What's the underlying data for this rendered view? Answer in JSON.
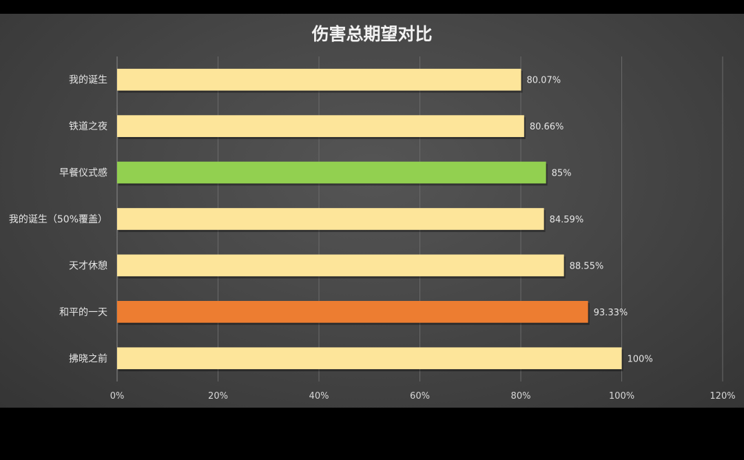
{
  "chart_data": {
    "type": "bar",
    "orientation": "horizontal",
    "title": "伤害总期望对比",
    "xlabel": "",
    "ylabel": "",
    "xlim": [
      0,
      120
    ],
    "x_ticks": [
      "0%",
      "20%",
      "40%",
      "60%",
      "80%",
      "100%",
      "120%"
    ],
    "grid": true,
    "categories": [
      "我的诞生",
      "铁道之夜",
      "早餐仪式感",
      "我的诞生（50%覆盖）",
      "天才休憩",
      "和平的一天",
      "拂晓之前"
    ],
    "values": [
      80.07,
      80.66,
      85,
      84.59,
      88.55,
      93.33,
      100
    ],
    "data_labels": [
      "80.07%",
      "80.66%",
      "85%",
      "84.59%",
      "88.55%",
      "93.33%",
      "100%"
    ],
    "colors": [
      "#fde59a",
      "#fde59a",
      "#92d050",
      "#fde59a",
      "#fde59a",
      "#ed7d31",
      "#fde59a"
    ]
  }
}
